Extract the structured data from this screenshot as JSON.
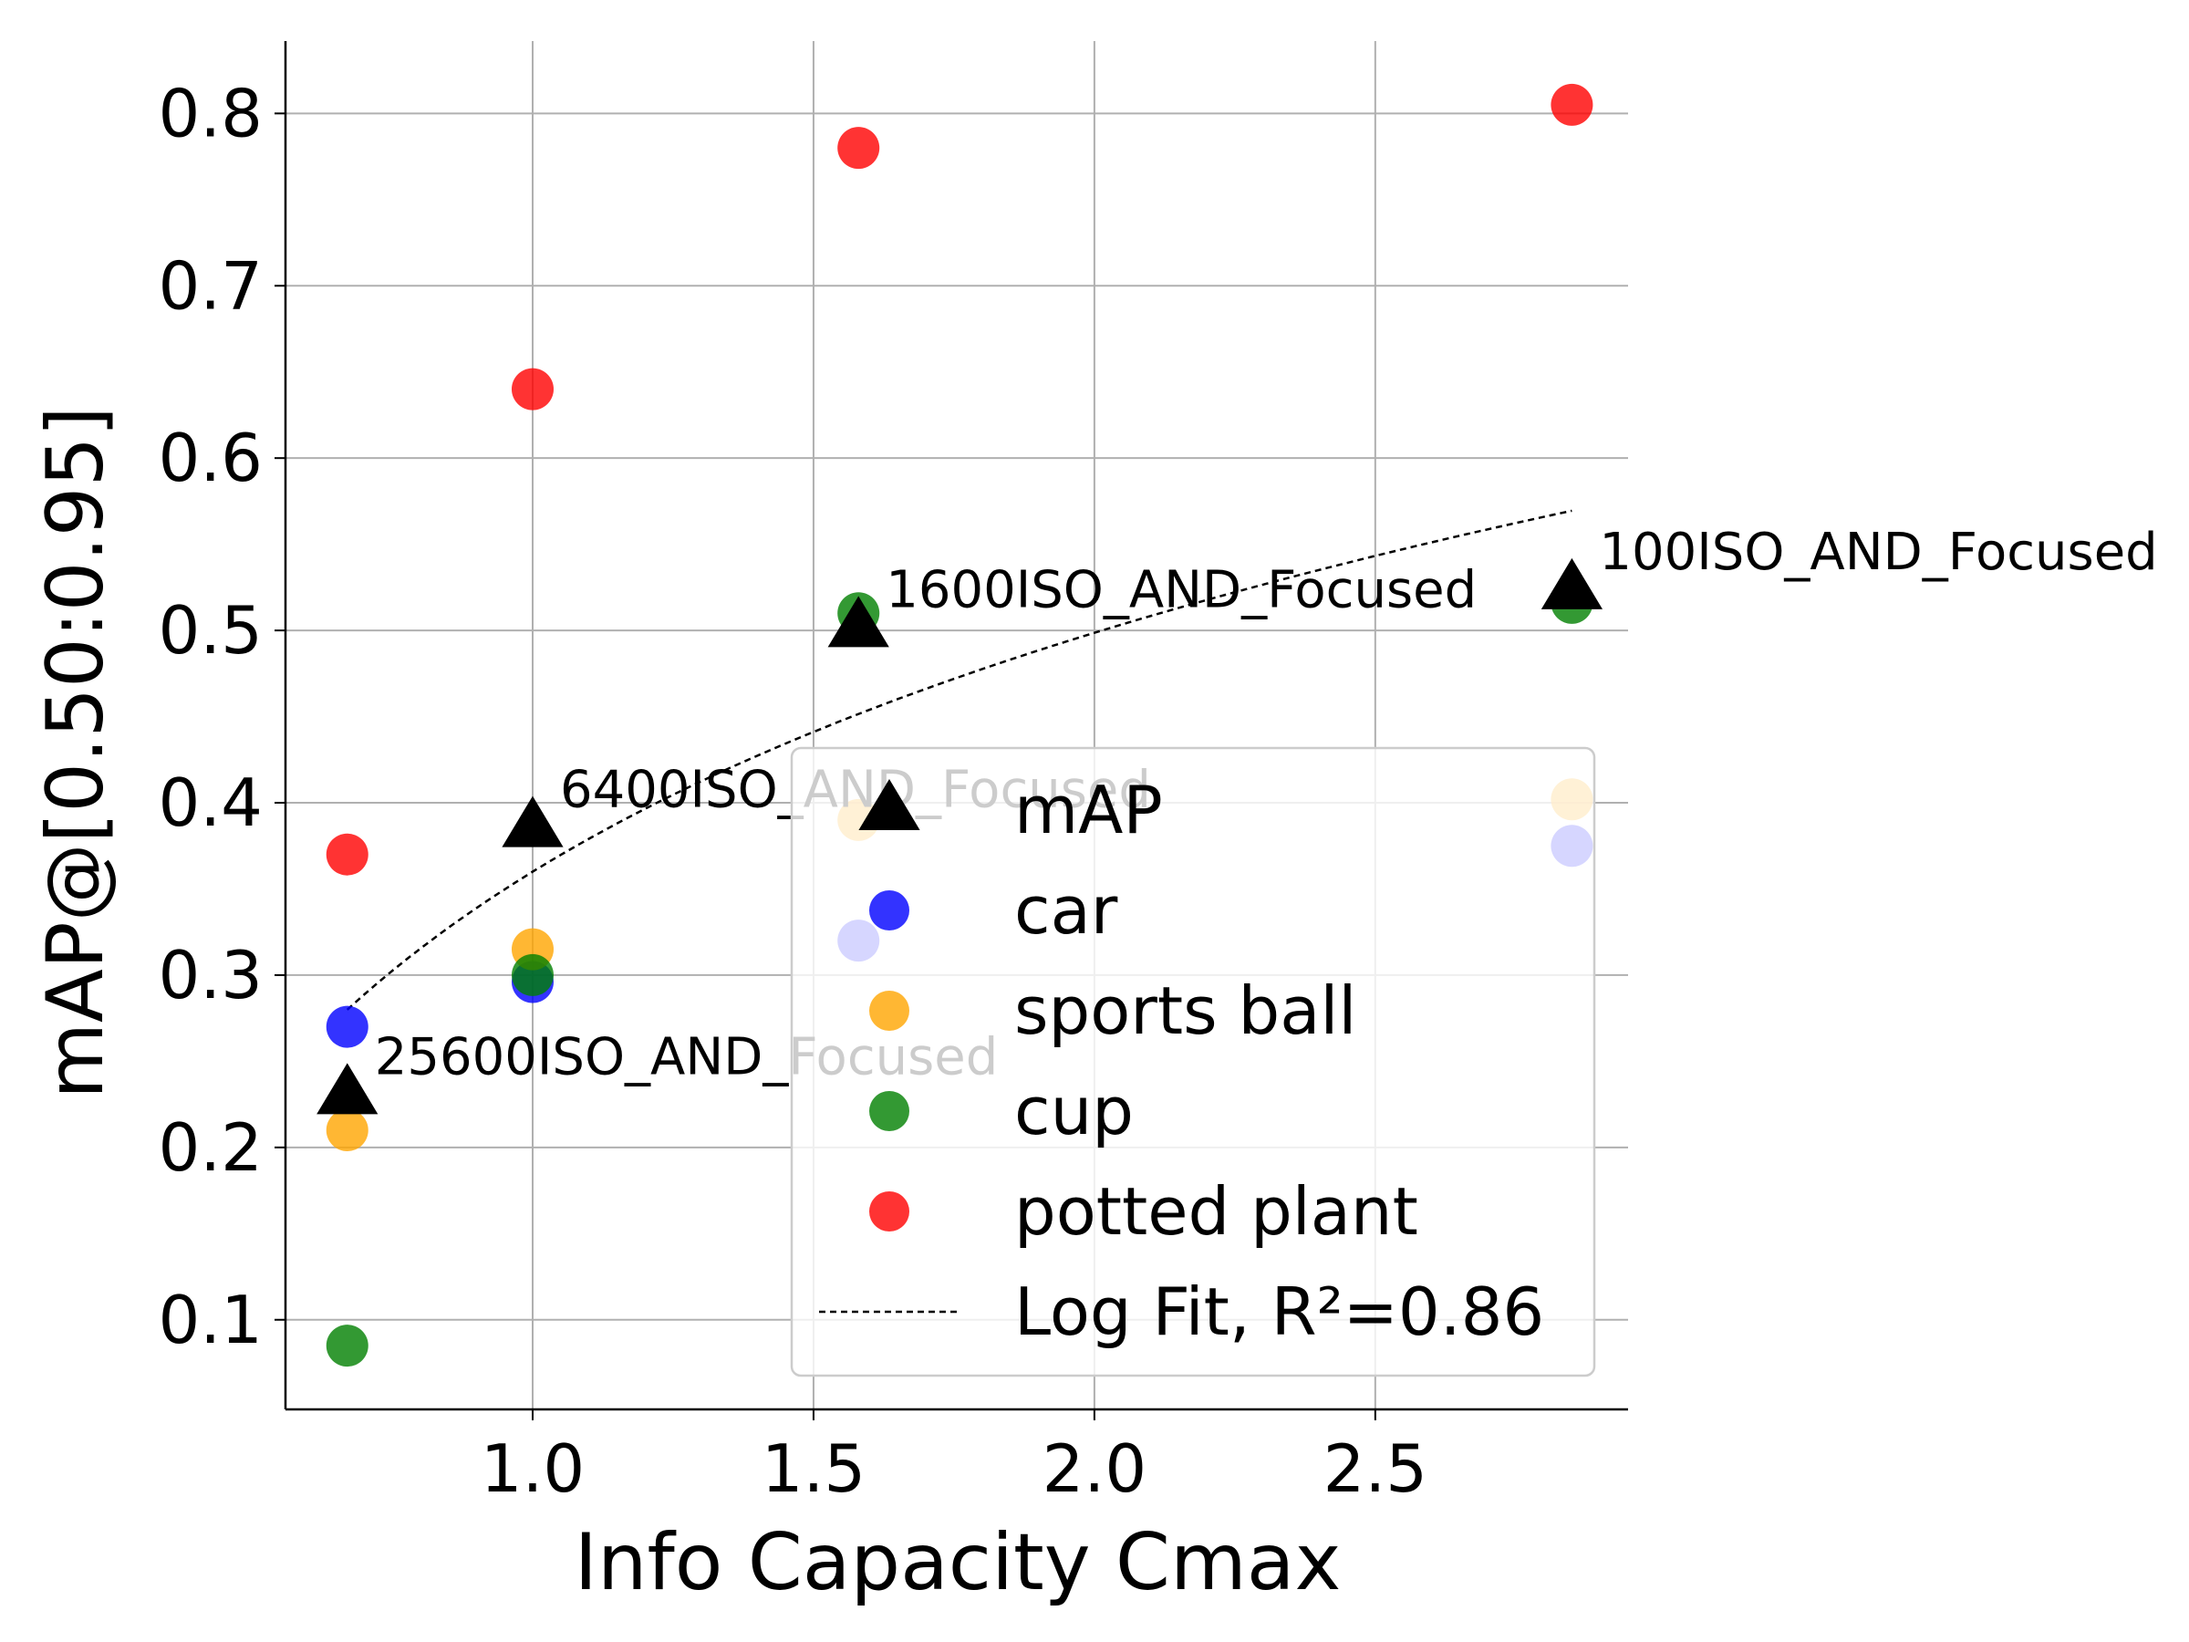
{
  "chart_data": {
    "type": "scatter",
    "xlabel": "Info Capacity Cmax",
    "ylabel": "mAP@[0.50:0.95]",
    "xlim": [
      0.56,
      2.95
    ],
    "ylim": [
      0.048,
      0.842
    ],
    "x_ticks": [
      1.0,
      1.5,
      2.0,
      2.5
    ],
    "x_tick_labels": [
      "1.0",
      "1.5",
      "2.0",
      "2.5"
    ],
    "y_ticks": [
      0.1,
      0.2,
      0.3,
      0.4,
      0.5,
      0.6,
      0.7,
      0.8
    ],
    "y_tick_labels": [
      "0.1",
      "0.2",
      "0.3",
      "0.4",
      "0.5",
      "0.6",
      "0.7",
      "0.8"
    ],
    "grid": true,
    "legend_position": "lower-right",
    "x": [
      0.67,
      1.0,
      1.58,
      2.85
    ],
    "series": [
      {
        "name": "mAP",
        "marker": "triangle",
        "color": "#000000",
        "values": [
          0.232,
          0.387,
          0.503,
          0.525
        ]
      },
      {
        "name": "car",
        "marker": "circle",
        "color": "#0000ff",
        "values": [
          0.27,
          0.296,
          0.32,
          0.375
        ]
      },
      {
        "name": "sports ball",
        "marker": "circle",
        "color": "#ffa500",
        "values": [
          0.21,
          0.315,
          0.39,
          0.402
        ]
      },
      {
        "name": "cup",
        "marker": "circle",
        "color": "#008000",
        "values": [
          0.085,
          0.3,
          0.51,
          0.516
        ]
      },
      {
        "name": "potted plant",
        "marker": "circle",
        "color": "#ff0000",
        "values": [
          0.37,
          0.64,
          0.78,
          0.805
        ]
      }
    ],
    "fit": {
      "name": "Log Fit, R²=0.86",
      "a": 0.36,
      "b": 0.2,
      "x_range": [
        0.67,
        2.85
      ]
    },
    "annotations": [
      {
        "text": "25600ISO_AND_Focused",
        "x": 0.67,
        "y": 0.232
      },
      {
        "text": "6400ISO_AND_Focused",
        "x": 1.0,
        "y": 0.387
      },
      {
        "text": "1600ISO_AND_Focused",
        "x": 1.58,
        "y": 0.503
      },
      {
        "text": "100ISO_AND_Focused",
        "x": 2.85,
        "y": 0.525
      }
    ]
  }
}
